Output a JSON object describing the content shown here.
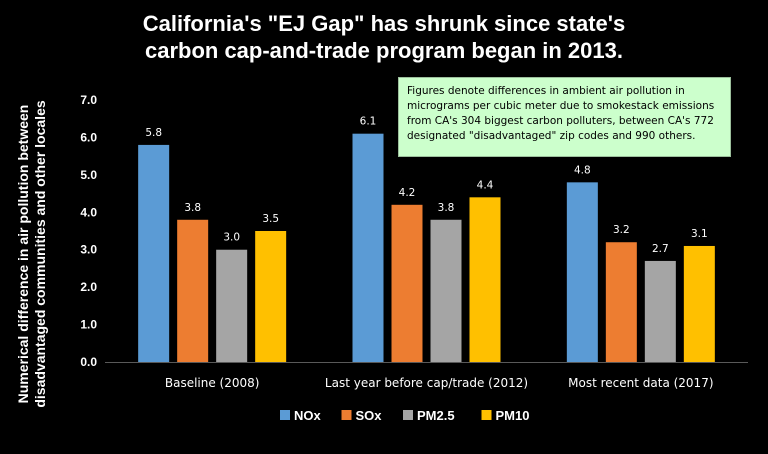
{
  "title_line1": "California's \"EJ Gap\" has shrunk since state's",
  "title_line2": "carbon cap-and-trade program began in 2013.",
  "note": "Figures denote differences in ambient air pollution in micrograms per cubic meter due to smokestack emissions from CA's 304 biggest carbon polluters, between CA's 772 designated \"disadvantaged\" zip codes and 990 others.",
  "chart_data": {
    "type": "bar",
    "title": "California's \"EJ Gap\" has shrunk since state's carbon cap-and-trade program began in 2013.",
    "xlabel": "",
    "ylabel": "Numerical difference in air pollution between disadvantaged communities and other locales",
    "ylim": [
      0,
      7
    ],
    "yticks": [
      "0.0",
      "1.0",
      "2.0",
      "3.0",
      "4.0",
      "5.0",
      "6.0",
      "7.0"
    ],
    "categories": [
      "Baseline (2008)",
      "Last year before cap/trade (2012)",
      "Most recent data (2017)"
    ],
    "series": [
      {
        "name": "NOx",
        "color": "#5b9bd5",
        "values": [
          5.8,
          6.1,
          4.8
        ],
        "labels": [
          "5.8",
          "6.1",
          "4.8"
        ]
      },
      {
        "name": "SOx",
        "color": "#ed7d31",
        "values": [
          3.8,
          4.2,
          3.2
        ],
        "labels": [
          "3.8",
          "4.2",
          "3.2"
        ]
      },
      {
        "name": "PM2.5",
        "color": "#a5a5a5",
        "values": [
          3.0,
          3.8,
          2.7
        ],
        "labels": [
          "3.0",
          "3.8",
          "2.7"
        ]
      },
      {
        "name": "PM10",
        "color": "#ffc000",
        "values": [
          3.5,
          4.4,
          3.1
        ],
        "labels": [
          "3.5",
          "4.4",
          "3.1"
        ]
      }
    ],
    "grid": false,
    "legend": "bottom",
    "axis_color": "#595959",
    "tick_color": "#ffffff",
    "data_label_color": "#ffffff"
  }
}
